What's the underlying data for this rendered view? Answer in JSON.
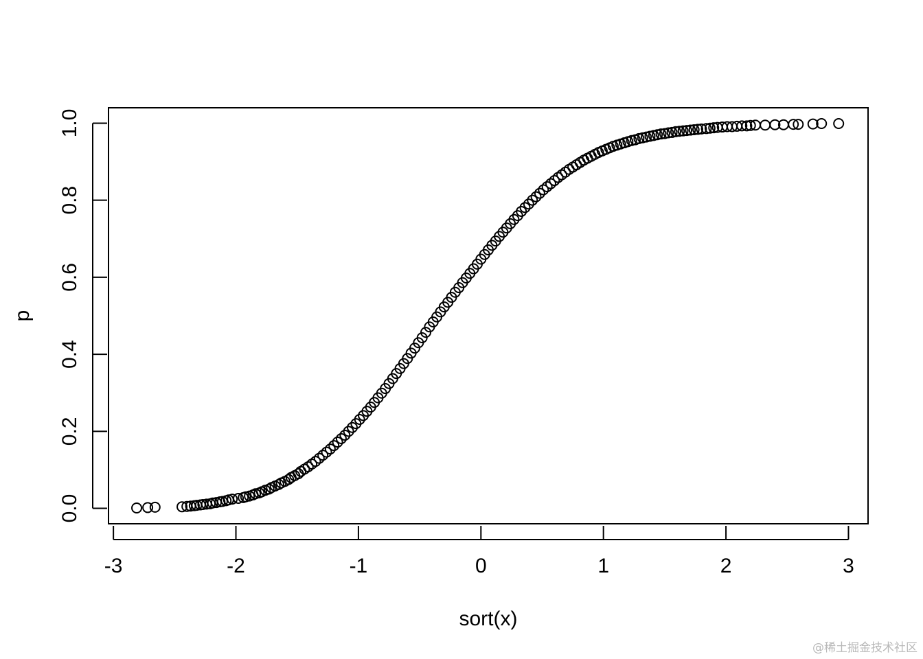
{
  "chart_data": {
    "type": "scatter",
    "title": "",
    "xlabel": "sort(x)",
    "ylabel": "p",
    "xlim": [
      -3.04,
      3.16
    ],
    "ylim": [
      -0.04,
      1.04
    ],
    "x_ticks": [
      "-3",
      "-2",
      "-1",
      "0",
      "1",
      "2",
      "3"
    ],
    "y_ticks": [
      "0.0",
      "0.2",
      "0.4",
      "0.6",
      "0.8",
      "1.0"
    ],
    "x_tick_values": [
      -3,
      -2,
      -1,
      0,
      1,
      2,
      3
    ],
    "y_tick_values": [
      0,
      0.2,
      0.4,
      0.6,
      0.8,
      1.0
    ],
    "grid": false,
    "legend": "none",
    "marker": "open-circle",
    "color": "#000000",
    "series": [
      {
        "x": [
          -2.81,
          -2.72,
          -2.66,
          -2.44,
          -2.4,
          -2.37,
          -2.34,
          -2.32,
          -2.29,
          -2.27,
          -2.24,
          -2.21,
          -2.19,
          -2.16,
          -2.13,
          -2.11,
          -2.08,
          -2.06,
          -2.03,
          -1.98,
          -1.94,
          -1.92,
          -1.89,
          -1.86,
          -1.84,
          -1.81,
          -1.79,
          -1.76,
          -1.73,
          -1.71,
          -1.68,
          -1.65,
          -1.63,
          -1.6,
          -1.57,
          -1.55,
          -1.52,
          -1.49,
          -1.47,
          -1.44,
          -1.41,
          -1.38,
          -1.35,
          -1.32,
          -1.29,
          -1.26,
          -1.23,
          -1.2,
          -1.17,
          -1.14,
          -1.11,
          -1.08,
          -1.05,
          -1.02,
          -0.99,
          -0.96,
          -0.93,
          -0.9,
          -0.87,
          -0.84,
          -0.81,
          -0.78,
          -0.75,
          -0.72,
          -0.69,
          -0.66,
          -0.63,
          -0.6,
          -0.57,
          -0.54,
          -0.51,
          -0.48,
          -0.45,
          -0.42,
          -0.39,
          -0.36,
          -0.33,
          -0.3,
          -0.27,
          -0.24,
          -0.21,
          -0.18,
          -0.15,
          -0.12,
          -0.09,
          -0.06,
          -0.03,
          0.0,
          0.03,
          0.06,
          0.09,
          0.12,
          0.15,
          0.18,
          0.21,
          0.24,
          0.27,
          0.3,
          0.33,
          0.36,
          0.39,
          0.42,
          0.45,
          0.48,
          0.51,
          0.54,
          0.57,
          0.6,
          0.63,
          0.66,
          0.69,
          0.72,
          0.75,
          0.78,
          0.81,
          0.84,
          0.87,
          0.9,
          0.93,
          0.96,
          0.99,
          1.02,
          1.05,
          1.08,
          1.11,
          1.14,
          1.17,
          1.2,
          1.23,
          1.26,
          1.29,
          1.32,
          1.35,
          1.38,
          1.41,
          1.44,
          1.47,
          1.5,
          1.53,
          1.56,
          1.59,
          1.62,
          1.65,
          1.68,
          1.71,
          1.74,
          1.77,
          1.8,
          1.84,
          1.87,
          1.9,
          1.93,
          1.97,
          2.01,
          2.05,
          2.09,
          2.13,
          2.17,
          2.2,
          2.24,
          2.32,
          2.4,
          2.47,
          2.55,
          2.59,
          2.71,
          2.78,
          2.92
        ],
        "y": [
          0.001,
          0.002,
          0.003,
          0.004,
          0.005,
          0.006,
          0.007,
          0.008,
          0.009,
          0.01,
          0.011,
          0.012,
          0.014,
          0.015,
          0.017,
          0.018,
          0.02,
          0.022,
          0.024,
          0.026,
          0.028,
          0.03,
          0.032,
          0.035,
          0.038,
          0.04,
          0.043,
          0.047,
          0.05,
          0.054,
          0.058,
          0.062,
          0.066,
          0.07,
          0.075,
          0.08,
          0.085,
          0.09,
          0.096,
          0.102,
          0.108,
          0.115,
          0.122,
          0.13,
          0.138,
          0.146,
          0.154,
          0.163,
          0.172,
          0.181,
          0.19,
          0.2,
          0.21,
          0.22,
          0.231,
          0.241,
          0.252,
          0.263,
          0.275,
          0.287,
          0.299,
          0.311,
          0.324,
          0.337,
          0.35,
          0.363,
          0.376,
          0.389,
          0.403,
          0.416,
          0.43,
          0.443,
          0.457,
          0.471,
          0.484,
          0.497,
          0.51,
          0.523,
          0.535,
          0.548,
          0.561,
          0.573,
          0.586,
          0.598,
          0.61,
          0.622,
          0.634,
          0.647,
          0.659,
          0.671,
          0.683,
          0.694,
          0.706,
          0.717,
          0.728,
          0.739,
          0.75,
          0.76,
          0.771,
          0.781,
          0.79,
          0.8,
          0.809,
          0.818,
          0.827,
          0.835,
          0.843,
          0.851,
          0.859,
          0.866,
          0.873,
          0.88,
          0.886,
          0.892,
          0.898,
          0.904,
          0.909,
          0.914,
          0.919,
          0.924,
          0.928,
          0.932,
          0.936,
          0.94,
          0.943,
          0.946,
          0.949,
          0.952,
          0.955,
          0.957,
          0.96,
          0.962,
          0.964,
          0.966,
          0.968,
          0.97,
          0.972,
          0.973,
          0.975,
          0.976,
          0.978,
          0.979,
          0.98,
          0.981,
          0.982,
          0.983,
          0.984,
          0.985,
          0.986,
          0.987,
          0.988,
          0.989,
          0.99,
          0.991,
          0.991,
          0.992,
          0.993,
          0.993,
          0.994,
          0.995,
          0.995,
          0.996,
          0.996,
          0.997,
          0.997,
          0.998,
          0.999,
          0.999
        ]
      }
    ]
  },
  "watermark": "@稀土掘金技术社区"
}
